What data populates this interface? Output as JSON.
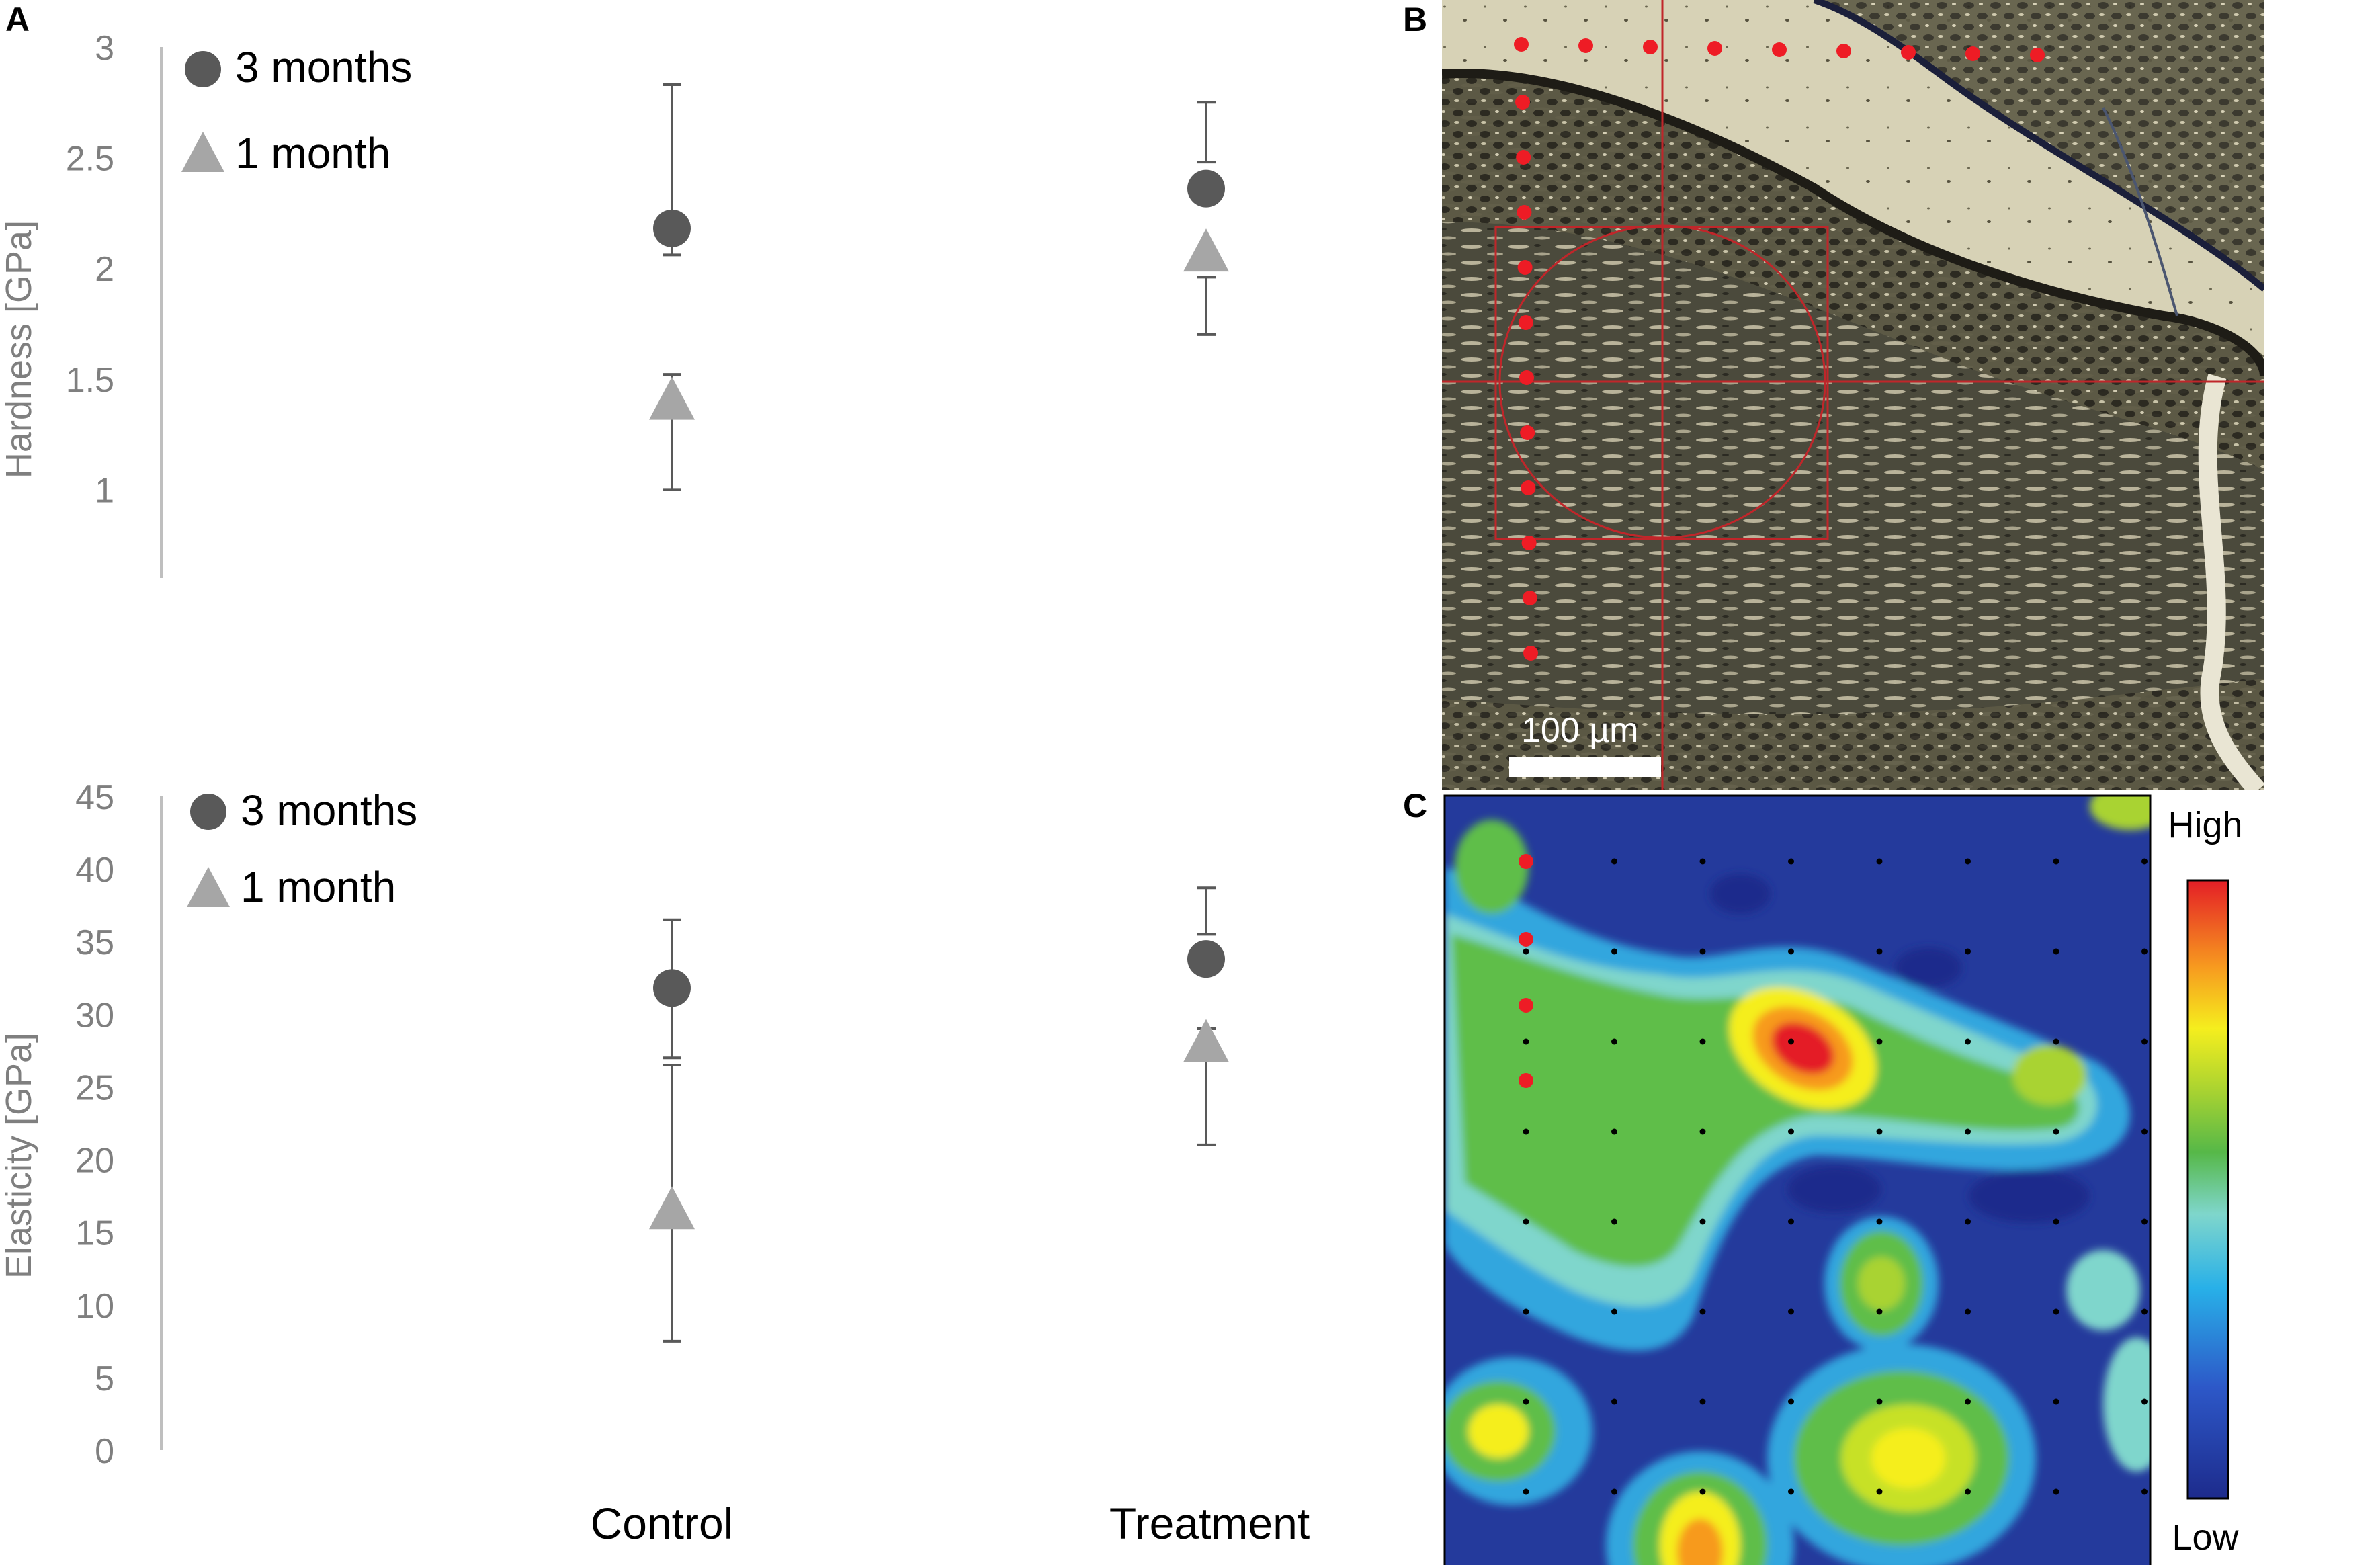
{
  "panels": {
    "a": "A",
    "b": "B",
    "c": "C"
  },
  "chart_data": [
    {
      "type": "scatter",
      "ylabel": "Hardness [GPa]",
      "ylim": [
        0.6,
        3.0
      ],
      "yticks": [
        "1",
        "1.5",
        "2",
        "2.5",
        "3"
      ],
      "ytick_values": [
        1,
        1.5,
        2,
        2.5,
        3
      ],
      "categories": [
        "Control",
        "Treatment"
      ],
      "legend_position": "top-left",
      "series": [
        {
          "name": "3 months",
          "marker": "circle",
          "color": "#595959",
          "values": [
            2.18,
            2.36
          ],
          "err_low": [
            2.06,
            2.48
          ],
          "err_high": [
            2.83,
            2.75
          ]
        },
        {
          "name": "1 month",
          "marker": "triangle",
          "color": "#a6a6a6",
          "values": [
            1.4,
            2.07
          ],
          "err_low": [
            1.0,
            1.7
          ],
          "err_high": [
            1.52,
            1.96
          ]
        }
      ]
    },
    {
      "type": "scatter",
      "ylabel": "Elasticity [GPa]",
      "ylim": [
        0,
        45
      ],
      "yticks": [
        "0",
        "5",
        "10",
        "15",
        "20",
        "25",
        "30",
        "35",
        "40",
        "45"
      ],
      "ytick_values": [
        0,
        5,
        10,
        15,
        20,
        25,
        30,
        35,
        40,
        45
      ],
      "categories": [
        "Control",
        "Treatment"
      ],
      "legend_position": "top-left",
      "series": [
        {
          "name": "3 months",
          "marker": "circle",
          "color": "#595959",
          "values": [
            31.8,
            33.8
          ],
          "err_low": [
            27.0,
            35.5
          ],
          "err_high": [
            36.5,
            38.7
          ]
        },
        {
          "name": "1 month",
          "marker": "triangle",
          "color": "#a6a6a6",
          "values": [
            16.5,
            28.0
          ],
          "err_low": [
            7.5,
            21.0
          ],
          "err_high": [
            26.5,
            29.0
          ]
        }
      ]
    },
    {
      "type": "heatmap",
      "colorbar_high": "High",
      "colorbar_low": "Low"
    }
  ],
  "micrograph": {
    "scale_label": "100 µm"
  }
}
